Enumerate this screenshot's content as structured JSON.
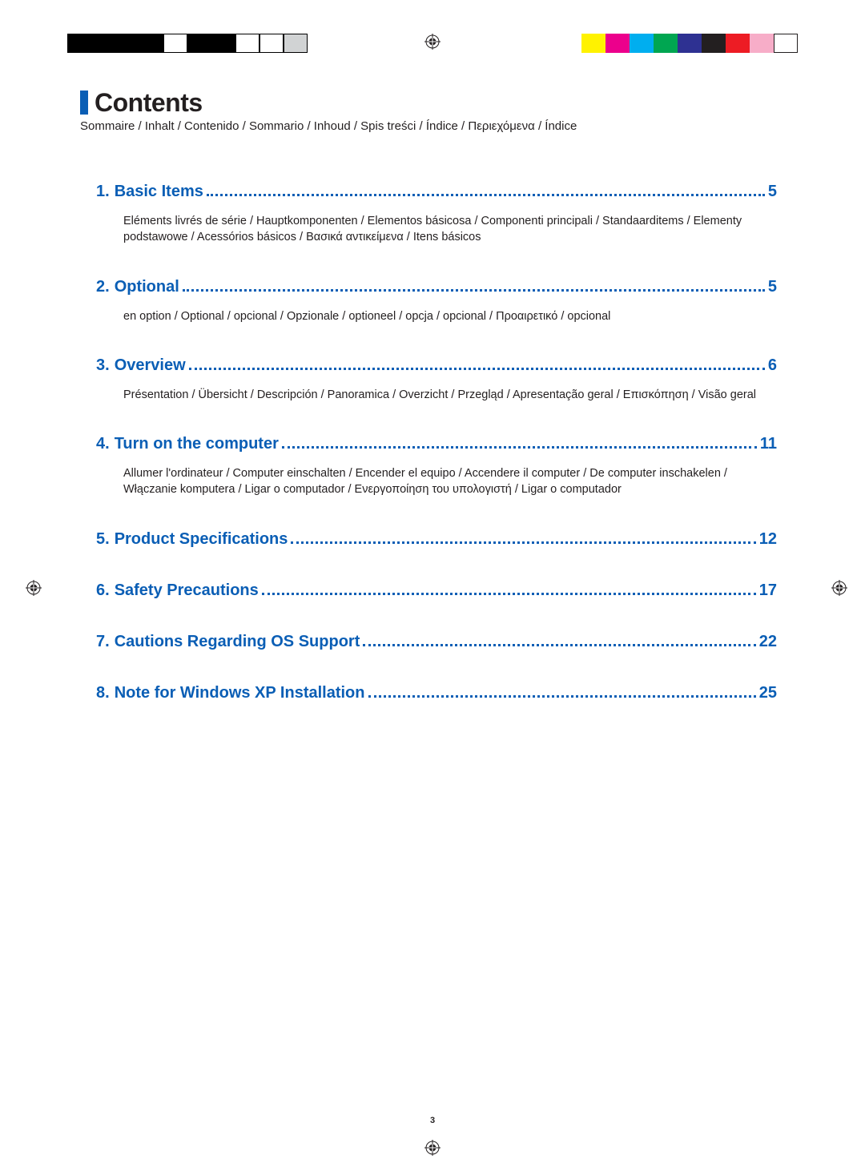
{
  "registration": {
    "left_colors": [
      "#000000",
      "#000000",
      "#000000",
      "#000000",
      "#ffffff",
      "#000000",
      "#000000",
      "#ffffff",
      "#ffffff",
      "#d1d3d4"
    ],
    "left_borders": [
      "#000000",
      "#000000",
      "#000000",
      "#000000",
      "#000000",
      "#000000",
      "#000000",
      "#000000",
      "#000000",
      "#000000"
    ],
    "right_colors": [
      "#fff200",
      "#ec008c",
      "#00aeef",
      "#00a651",
      "#2e3192",
      "#231f20",
      "#ed1c24",
      "#f7adc8",
      "#ffffff"
    ],
    "right_borders": [
      "#fff200",
      "#ec008c",
      "#00aeef",
      "#00a651",
      "#2e3192",
      "#231f20",
      "#ed1c24",
      "#f7adc8",
      "#231f20"
    ]
  },
  "header": {
    "title": "Contents",
    "subtitle": "Sommaire / Inhalt / Contenido / Sommario / Inhoud / Spis treści / Índice / Περιεχόμενα / Índice",
    "accent_color": "#0a5eb5"
  },
  "toc": [
    {
      "num": "1.",
      "title": "Basic Items",
      "page": "5",
      "desc": "Eléments livrés de série / Hauptkomponenten / Elementos básicosa / Componenti principali / Standaarditems / Elementy podstawowe / Acessórios básicos / Βασικά αντικείμενα / Itens básicos"
    },
    {
      "num": "2.",
      "title": "Optional",
      "page": "5",
      "desc": "en option / Optional / opcional / Opzionale / optioneel / opcja / opcional / Προαιρετικό / opcional"
    },
    {
      "num": "3.",
      "title": "Overview",
      "page": "6",
      "desc": "Présentation / Übersicht / Descripción / Panoramica / Overzicht / Przegląd / Apresentação geral / Επισκόπηση / Visão geral"
    },
    {
      "num": "4.",
      "title": "Turn on the computer",
      "page": "11",
      "desc": "Allumer l'ordinateur / Computer einschalten / Encender el equipo / Accendere il computer / De computer inschakelen / Włączanie komputera / Ligar o computador / Ενεργοποίηση του υπολογιστή / Ligar o computador"
    },
    {
      "num": "5.",
      "title": "Product Specifications",
      "page": "12",
      "desc": ""
    },
    {
      "num": "6.",
      "title": "Safety Precautions",
      "page": "17",
      "desc": ""
    },
    {
      "num": "7.",
      "title": "Cautions Regarding OS Support",
      "page": "22",
      "desc": ""
    },
    {
      "num": "8.",
      "title": "Note for Windows XP Installation",
      "page": "25",
      "desc": ""
    }
  ],
  "page_number": "3"
}
